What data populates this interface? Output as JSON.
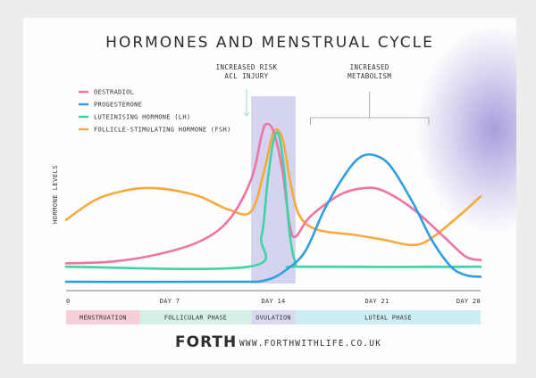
{
  "chart_data": {
    "type": "line",
    "title": "HORMONES AND MENSTRUAL CYCLE",
    "ylabel": "HORMONE LEVELS",
    "xlabel": "",
    "xlim": [
      0,
      28
    ],
    "ylim": [
      0,
      100
    ],
    "grid": false,
    "legend_position": "top-left",
    "x_ticks": [
      {
        "value": 0,
        "label": "0"
      },
      {
        "value": 7,
        "label": "DAY 7"
      },
      {
        "value": 14,
        "label": "DAY 14"
      },
      {
        "value": 21,
        "label": "DAY 21"
      },
      {
        "value": 28,
        "label": "DAY 28"
      }
    ],
    "series": [
      {
        "name": "OESTRADIOL",
        "color": "#ef74a4",
        "points": [
          [
            0,
            12
          ],
          [
            3,
            13
          ],
          [
            6,
            17
          ],
          [
            9,
            25
          ],
          [
            11,
            38
          ],
          [
            12.5,
            62
          ],
          [
            13.2,
            88
          ],
          [
            13.5,
            95
          ],
          [
            14,
            91
          ],
          [
            14.6,
            68
          ],
          [
            15.1,
            35
          ],
          [
            15.5,
            28
          ],
          [
            16.5,
            40
          ],
          [
            18.5,
            53
          ],
          [
            20.2,
            57
          ],
          [
            21.5,
            55
          ],
          [
            23.5,
            44
          ],
          [
            25.5,
            28
          ],
          [
            27,
            16
          ],
          [
            28,
            14
          ]
        ]
      },
      {
        "name": "PROGESTERONE",
        "color": "#2f9fdd",
        "points": [
          [
            0,
            1
          ],
          [
            11,
            1
          ],
          [
            13.5,
            2
          ],
          [
            15,
            9
          ],
          [
            16.2,
            20
          ],
          [
            17.5,
            45
          ],
          [
            19,
            67
          ],
          [
            20,
            76
          ],
          [
            21,
            76
          ],
          [
            22,
            69
          ],
          [
            23.5,
            47
          ],
          [
            24.7,
            26
          ],
          [
            26,
            10
          ],
          [
            27,
            5
          ],
          [
            28,
            4
          ]
        ]
      },
      {
        "name": "LUTEINISING HORMONE (LH)",
        "color": "#3ed3a4",
        "points": [
          [
            0,
            10
          ],
          [
            12.3,
            10
          ],
          [
            13.2,
            28
          ],
          [
            13.6,
            60
          ],
          [
            14,
            85
          ],
          [
            14.35,
            89
          ],
          [
            14.7,
            70
          ],
          [
            15.1,
            30
          ],
          [
            15.5,
            12
          ],
          [
            15.9,
            10
          ],
          [
            28,
            10
          ]
        ]
      },
      {
        "name": "FOLLICLE-STIMULATING HORMONE (FSH)",
        "color": "#f7a93c",
        "points": [
          [
            0,
            38
          ],
          [
            2,
            50
          ],
          [
            4,
            55.5
          ],
          [
            5.5,
            57
          ],
          [
            7,
            56
          ],
          [
            9,
            52
          ],
          [
            11,
            44
          ],
          [
            12.5,
            43
          ],
          [
            13.4,
            68
          ],
          [
            14,
            90
          ],
          [
            14.6,
            87
          ],
          [
            15.2,
            58
          ],
          [
            15.8,
            40
          ],
          [
            17,
            32
          ],
          [
            19.5,
            29
          ],
          [
            21.5,
            26
          ],
          [
            23.3,
            23
          ],
          [
            24.5,
            26
          ],
          [
            26.5,
            40
          ],
          [
            28,
            52
          ]
        ]
      }
    ],
    "annotations": [
      {
        "text_lines": [
          "INCREASED RISK",
          "ACL INJURY"
        ],
        "x": 14,
        "kind": "arrow"
      },
      {
        "text_lines": [
          "INCREASED",
          "METABOLISM"
        ],
        "x_range": [
          16.5,
          24.5
        ],
        "kind": "bracket"
      }
    ],
    "shaded_region": {
      "x_start": 12.5,
      "x_end": 15.5,
      "color": "#c5c6ec"
    },
    "phases": [
      {
        "label": "MENSTRUATION",
        "start": 0,
        "end": 5,
        "color": "#f6cfd8"
      },
      {
        "label": "FOLLICULAR PHASE",
        "start": 5,
        "end": 12.5,
        "color": "#d5f0e6"
      },
      {
        "label": "OVULATION",
        "start": 12.5,
        "end": 15.5,
        "color": "#d8d9f1"
      },
      {
        "label": "LUTEAL PHASE",
        "start": 15.5,
        "end": 28,
        "color": "#ccedf4"
      }
    ]
  },
  "footer": {
    "logo": "FORTH",
    "registered": "®",
    "url": "WWW.FORTHWITHLIFE.CO.UK"
  }
}
